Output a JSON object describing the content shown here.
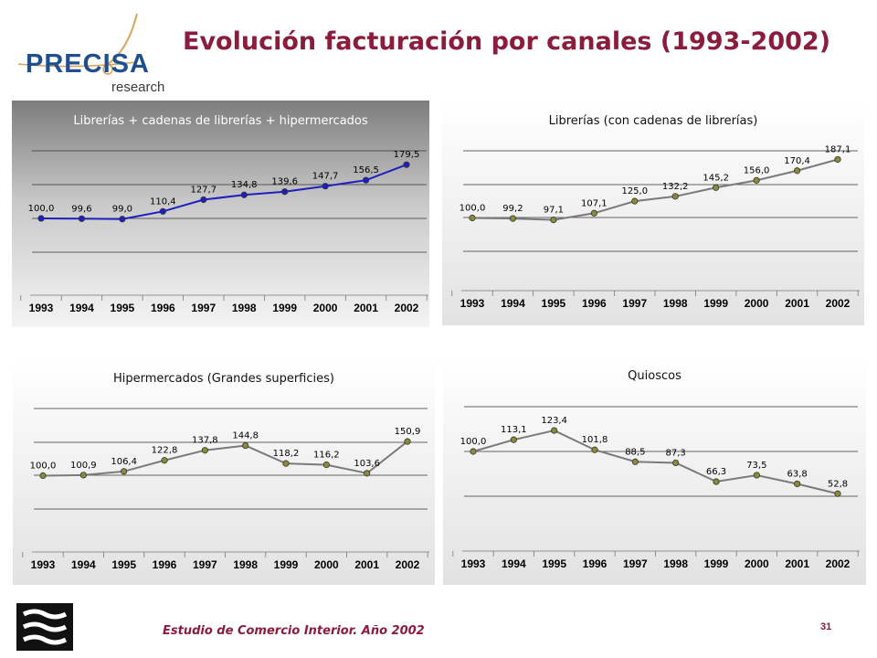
{
  "header": {
    "logo_text": "PRECISA",
    "logo_sub": "research",
    "title": "Evolución facturación por canales (1993-2002)"
  },
  "footer": {
    "text": "Estudio de Comercio Interior. Año 2002",
    "page_number": "31"
  },
  "colors": {
    "title": "#8b1c3e",
    "series_blue": "#1f1fbf",
    "series_gray": "#7a7a7a",
    "marker_fill": "#8a8a3a"
  },
  "chart_data": [
    {
      "type": "line",
      "title": "Librerías + cadenas de librerías + hipermercados",
      "categories": [
        "1993",
        "1994",
        "1995",
        "1996",
        "1997",
        "1998",
        "1999",
        "2000",
        "2001",
        "2002"
      ],
      "values": [
        100.0,
        99.6,
        99.0,
        110.4,
        127.7,
        134.8,
        139.6,
        147.7,
        156.5,
        179.5
      ],
      "labels": [
        "100,0",
        "99,6",
        "99,0",
        "110,4",
        "127,7",
        "134,8",
        "139,6",
        "147,7",
        "156,5",
        "179,5"
      ],
      "ylim": [
        0,
        200
      ],
      "grid": true,
      "legend": "none",
      "line_color": "#1f1fbf"
    },
    {
      "type": "line",
      "title": "Librerías (con cadenas de librerías)",
      "categories": [
        "1993",
        "1994",
        "1995",
        "1996",
        "1997",
        "1998",
        "1999",
        "2000",
        "2001",
        "2002"
      ],
      "values": [
        100.0,
        99.2,
        97.1,
        107.1,
        125.0,
        132.2,
        145.2,
        156.0,
        170.4,
        187.1
      ],
      "labels": [
        "100,0",
        "99,2",
        "97,1",
        "107,1",
        "125,0",
        "132,2",
        "145,2",
        "156,0",
        "170,4",
        "187,1"
      ],
      "ylim": [
        0,
        200
      ],
      "grid": true,
      "legend": "none",
      "line_color": "#7a7a7a"
    },
    {
      "type": "line",
      "title": "Hipermercados (Grandes superficies)",
      "categories": [
        "1993",
        "1994",
        "1995",
        "1996",
        "1997",
        "1998",
        "1999",
        "2000",
        "2001",
        "2002"
      ],
      "values": [
        100.0,
        100.9,
        106.4,
        122.8,
        137.8,
        144.8,
        118.2,
        116.2,
        103.6,
        150.9
      ],
      "labels": [
        "100,0",
        "100,9",
        "106,4",
        "122,8",
        "137,8",
        "144,8",
        "118,2",
        "116,2",
        "103,6",
        "150,9"
      ],
      "ylim": [
        0,
        200
      ],
      "grid": true,
      "legend": "none",
      "line_color": "#7a7a7a"
    },
    {
      "type": "line",
      "title": "Quioscos",
      "categories": [
        "1993",
        "1994",
        "1995",
        "1996",
        "1997",
        "1998",
        "1999",
        "2000",
        "2001",
        "2002"
      ],
      "values": [
        100.0,
        113.1,
        123.4,
        101.8,
        88.5,
        87.3,
        66.3,
        73.5,
        63.8,
        52.8
      ],
      "labels": [
        "100,0",
        "113,1",
        "123,4",
        "101,8",
        "88,5",
        "87,3",
        "66,3",
        "73,5",
        "63,8",
        "52,8"
      ],
      "ylim": [
        0,
        150
      ],
      "grid": true,
      "legend": "none",
      "line_color": "#7a7a7a"
    }
  ]
}
